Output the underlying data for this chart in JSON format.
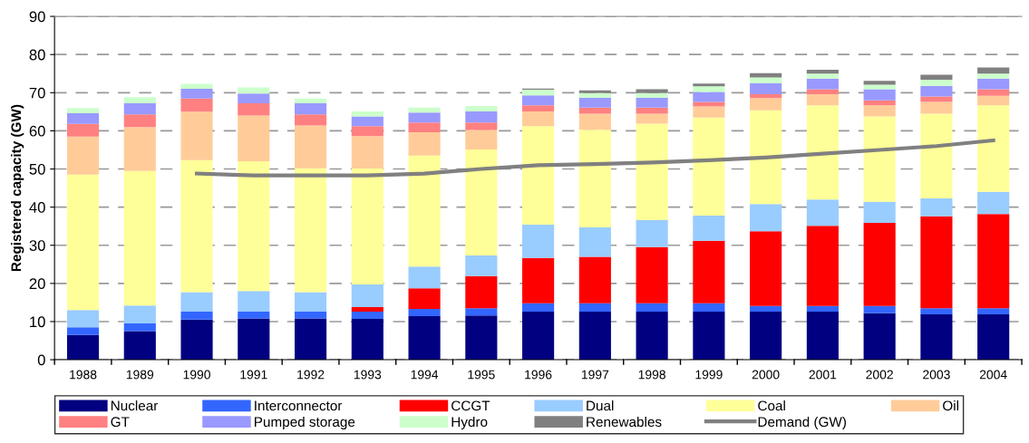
{
  "chart_data": {
    "type": "bar",
    "stacked": true,
    "ylabel": "Registered capacity (GW)",
    "categories": [
      "1988",
      "1989",
      "1990",
      "1991",
      "1992",
      "1993",
      "1994",
      "1995",
      "1996",
      "1997",
      "1998",
      "1999",
      "2000",
      "2001",
      "2002",
      "2003",
      "2004"
    ],
    "ylim": [
      0,
      90
    ],
    "yticks": [
      0,
      10,
      20,
      30,
      40,
      50,
      60,
      70,
      80,
      90
    ],
    "grid": "y",
    "legend": "bottom",
    "series": [
      {
        "name": "Nuclear",
        "color": "#000080",
        "values": [
          6.5,
          7.5,
          10.5,
          10.8,
          10.8,
          10.7,
          11.4,
          11.6,
          12.6,
          12.6,
          12.6,
          12.6,
          12.6,
          12.6,
          12.2,
          11.9,
          11.9
        ]
      },
      {
        "name": "Interconnector",
        "color": "#3366ff",
        "values": [
          2,
          2,
          2.1,
          1.8,
          1.8,
          1.9,
          1.9,
          1.9,
          2.2,
          2.2,
          2.2,
          2.2,
          1.5,
          1.5,
          1.9,
          1.6,
          1.6
        ]
      },
      {
        "name": "CCGT",
        "color": "#ff0000",
        "values": [
          0,
          0,
          0,
          0,
          0,
          1.2,
          5.4,
          8.4,
          11.9,
          12.2,
          14.7,
          16.4,
          19.6,
          21.0,
          21.8,
          24.1,
          24.7
        ]
      },
      {
        "name": "Dual",
        "color": "#99ccff",
        "values": [
          4.5,
          4.7,
          5.1,
          5.4,
          5.1,
          5.9,
          5.7,
          5.4,
          8.7,
          7.7,
          7.1,
          6.6,
          7.1,
          6.9,
          5.5,
          4.7,
          5.8
        ]
      },
      {
        "name": "Coal",
        "color": "#ffff99",
        "values": [
          35.5,
          35.3,
          34.6,
          34,
          32.5,
          30.4,
          29.1,
          27.8,
          25.8,
          25.6,
          25.3,
          25.7,
          24.6,
          24.7,
          22.4,
          22.2,
          22.7
        ]
      },
      {
        "name": "Oil",
        "color": "#ffcc99",
        "values": [
          10,
          11.5,
          12.7,
          12,
          11.2,
          8.5,
          6.1,
          5.1,
          3.9,
          4.2,
          2.6,
          2.9,
          3.2,
          2.9,
          2.9,
          3.1,
          2.5
        ]
      },
      {
        "name": "GT",
        "color": "#ff8080",
        "values": [
          3.3,
          3.3,
          3.5,
          3.2,
          2.9,
          2.6,
          2.6,
          2.0,
          1.6,
          1.6,
          1.6,
          1.2,
          1.0,
          1.3,
          1.3,
          1.4,
          1.7
        ]
      },
      {
        "name": "Pumped storage",
        "color": "#9999ff",
        "values": [
          2.8,
          2.9,
          2.5,
          2.6,
          2.9,
          2.6,
          2.6,
          2.9,
          2.6,
          2.6,
          2.6,
          2.6,
          2.9,
          2.8,
          2.9,
          2.8,
          2.8
        ]
      },
      {
        "name": "Hydro",
        "color": "#ccffcc",
        "values": [
          1.4,
          1.6,
          1.3,
          1.6,
          1.3,
          1.3,
          1.3,
          1.4,
          1.5,
          1.2,
          1.2,
          1.5,
          1.5,
          1.3,
          1.2,
          1.6,
          1.3
        ]
      },
      {
        "name": "Renewables",
        "color": "#808080",
        "values": [
          0,
          0,
          0,
          0,
          0,
          0,
          0,
          0,
          0.3,
          0.7,
          1.0,
          0.7,
          1.1,
          1.0,
          1.0,
          1.3,
          1.6
        ]
      },
      {
        "name": "Demand (GW)",
        "type": "line",
        "color": "#808080",
        "values": [
          null,
          null,
          48.8,
          48.3,
          48.3,
          48.3,
          48.8,
          50.0,
          51.0,
          51.3,
          51.7,
          52.3,
          53.0,
          54.0,
          55.0,
          56.0,
          57.5
        ]
      }
    ]
  }
}
